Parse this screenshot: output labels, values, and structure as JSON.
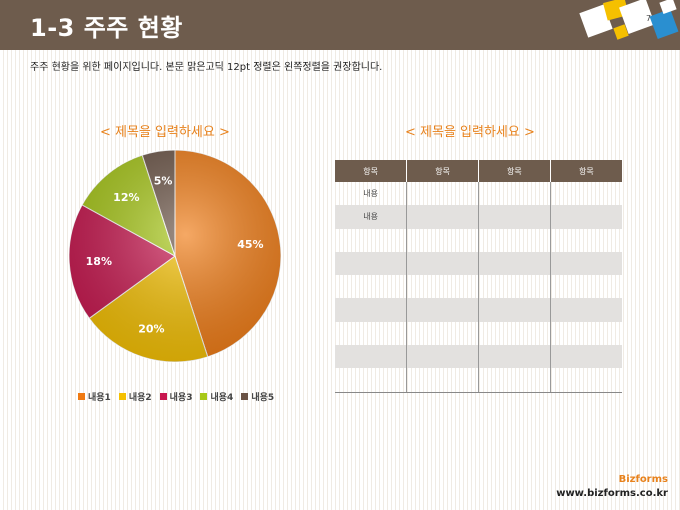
{
  "header": {
    "title": "1-3 주주 현황",
    "page_number": "7"
  },
  "subtitle": "주주 현황을 위한 페이지입니다. 본문 맑은고딕 12pt 정렬은 왼쪽정렬을 권장합니다.",
  "left_section": {
    "title": "< 제목을 입력하세요 >"
  },
  "right_section": {
    "title": "< 제목을 입력하세요 >",
    "table": {
      "headers": [
        "항목",
        "항목",
        "항목",
        "항목"
      ],
      "rows": [
        [
          "내용",
          "",
          "",
          ""
        ],
        [
          "내용",
          "",
          "",
          ""
        ],
        [
          "",
          "",
          "",
          ""
        ],
        [
          "",
          "",
          "",
          ""
        ],
        [
          "",
          "",
          "",
          ""
        ],
        [
          "",
          "",
          "",
          ""
        ],
        [
          "",
          "",
          "",
          ""
        ],
        [
          "",
          "",
          "",
          ""
        ],
        [
          "",
          "",
          "",
          ""
        ]
      ]
    }
  },
  "chart_data": {
    "type": "pie",
    "title": "< 제목을 입력하세요 >",
    "categories": [
      "내용1",
      "내용2",
      "내용3",
      "내용4",
      "내용5"
    ],
    "values": [
      45,
      20,
      18,
      12,
      5
    ],
    "value_labels": [
      "45%",
      "20%",
      "18%",
      "12%",
      "5%"
    ],
    "colors": [
      "#f07a12",
      "#f5c000",
      "#c8174f",
      "#a8c818",
      "#6a5345"
    ],
    "legend_position": "bottom"
  },
  "footer": {
    "brand": "Bizforms",
    "url": "www.bizforms.co.kr"
  },
  "colors": {
    "header_bg": "#6e5c4d",
    "accent": "#e8821c"
  }
}
